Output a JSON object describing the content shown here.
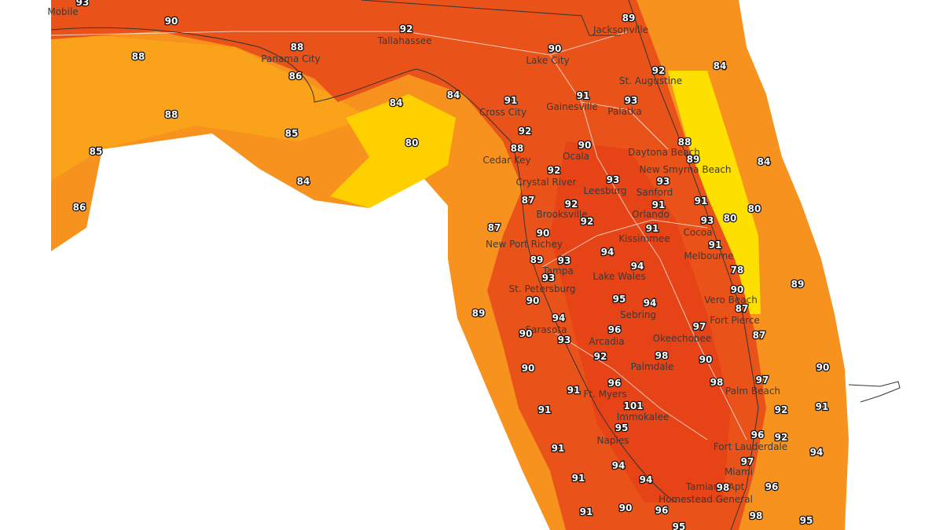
{
  "cities": [
    "Mobile",
    "Tallahassee",
    "Jacksonville",
    "Panama City",
    "Lake City",
    "St. Augustine",
    "Cross City",
    "Gainesville",
    "Palatka",
    "Cedar Key",
    "Ocala",
    "Daytona Beach",
    "New Smyrna Beach",
    "Crystal River",
    "Leesburg",
    "Sanford",
    "Brooksville",
    "Orlando",
    "Cocoa",
    "Kissimmee",
    "New Port Richey",
    "Melbourne",
    "Tampa",
    "Lake Wales",
    "St. Petersburg",
    "Vero Beach",
    "Sebring",
    "Fort Pierce",
    "Sarasota",
    "Arcadia",
    "Okeechobee",
    "Palmdale",
    "Palm Beach",
    "Ft. Myers",
    "Immokalee",
    "Naples",
    "Fort Lauderdale",
    "Miami",
    "Tamiami Apt",
    "Homestead General"
  ],
  "temperatures": [
    93,
    90,
    92,
    89,
    88,
    90,
    88,
    92,
    84,
    86,
    91,
    84,
    84,
    91,
    93,
    88,
    85,
    92,
    80,
    85,
    90,
    88,
    88,
    89,
    92,
    84,
    84,
    93,
    93,
    87,
    91,
    92,
    91,
    80,
    86,
    92,
    93,
    80,
    87,
    90,
    91,
    91,
    89,
    93,
    94,
    94,
    78,
    93,
    89,
    90,
    90,
    95,
    94,
    87,
    89,
    94,
    96,
    97,
    90,
    93,
    87,
    92,
    98,
    90,
    90,
    90,
    98,
    97,
    96,
    91,
    101,
    92,
    91,
    91,
    95,
    96,
    92,
    91,
    97,
    94,
    94,
    91,
    94,
    98,
    96,
    91,
    90,
    96,
    98,
    95,
    95
  ]
}
